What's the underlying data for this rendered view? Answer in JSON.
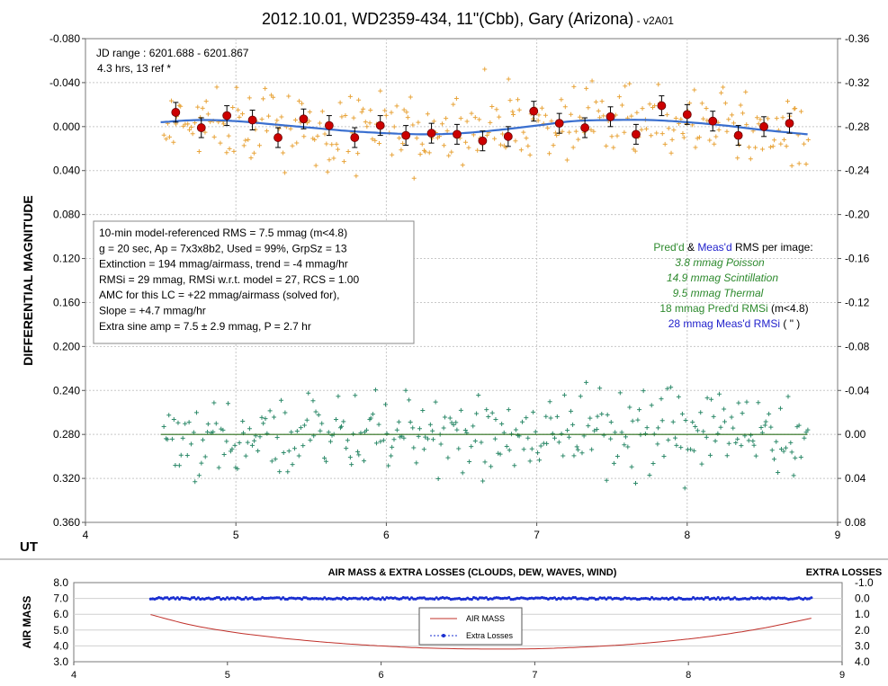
{
  "title": {
    "main": "2012.10.01, WD2359-434, 11\"(Cbb), Gary (Arizona)",
    "suffix": " - v2A01"
  },
  "colors": {
    "target": "#e8a43a",
    "check": "#2e8a6a",
    "avg": "#cc0000",
    "model": "#3a6fcf",
    "baseline": "#2a6e1a",
    "airmass": "#c0302a",
    "losses": "#1a2fd0",
    "legend_green": "#2e8a2e",
    "legend_blue": "#2222cc"
  },
  "top_chart": {
    "ylabel": "DIFFERENTIAL MAGNITUDE",
    "xlabel": "UT",
    "jd_range": "JD range : 6201.688  - 6201.867",
    "hrs_ref": "4.3 hrs, 13 ref *",
    "stats_box": [
      "10-min model-referenced RMS = 7.5 mmag (m<4.8)",
      "g = 20 sec, Ap = 7x3x8b2, Used = 99%, GrpSz = 13",
      "Extinction = 194 mmag/airmass, trend = -4 mmag/hr",
      "RMSi = 29 mmag, RMSi w.r.t. model = 27, RCS = 1.00",
      "AMC for this LC = +22 mmag/airmass (solved for),",
      "Slope = +4.7 mmag/hr",
      "Extra sine amp = 7.5 ± 2.9 mmag, P = 2.7 hr"
    ],
    "rms_legend": {
      "header_a": "Pred'd",
      "header_amp": " & ",
      "header_b": "Meas'd",
      "header_c": " RMS per image:",
      "poisson": "3.8 mmag Poisson",
      "scint": "14.9 mmag Scintillation",
      "thermal": "9.5 mmag Thermal",
      "predd": "18 mmag Pred'd  RMSi",
      "predd_cond": " (m<4.8)",
      "measd": "28 mmag Meas'd RMSi",
      "measd_cond": " (   \"    )"
    },
    "left_ticks": [
      "-0.080",
      "-0.040",
      "0.000",
      "0.040",
      "0.080",
      "0.120",
      "0.160",
      "0.200",
      "0.240",
      "0.280",
      "0.320",
      "0.360"
    ],
    "right_ticks": [
      "-0.36",
      "-0.32",
      "-0.28",
      "-0.24",
      "-0.20",
      "-0.16",
      "-0.12",
      "-0.08",
      "-0.04",
      "0.00",
      "0.04",
      "0.08"
    ],
    "x_ticks": [
      "4",
      "5",
      "6",
      "7",
      "8",
      "9"
    ]
  },
  "bottom_chart": {
    "title": "AIR MASS & EXTRA LOSSES  (CLOUDS,  DEW, WAVES, WIND)",
    "right_title": "EXTRA LOSSES",
    "ylabel": "AIR MASS",
    "left_ticks": [
      "8.0",
      "7.0",
      "6.0",
      "5.0",
      "4.0",
      "3.0"
    ],
    "right_ticks": [
      "-1.0",
      "0.0",
      "1.0",
      "2.0",
      "3.0",
      "4.0"
    ],
    "x_ticks": [
      "4",
      "5",
      "6",
      "7",
      "8",
      "9"
    ],
    "legend_airmass": "AIR MASS",
    "legend_losses": "Extra Losses"
  },
  "chart_data": [
    {
      "type": "scatter",
      "title": "2012.10.01, WD2359-434, 11\"(Cbb), Gary (Arizona) - v2A01",
      "xlabel": "UT",
      "ylabel": "DIFFERENTIAL MAGNITUDE",
      "xlim": [
        4,
        9
      ],
      "ylim": [
        -0.08,
        0.36
      ],
      "y_inverted": true,
      "right_ylim": [
        -0.36,
        0.08
      ],
      "grid": true,
      "series": [
        {
          "kind": "binned_average",
          "x": [
            4.6,
            4.77,
            4.94,
            5.11,
            5.28,
            5.45,
            5.62,
            5.79,
            5.96,
            6.13,
            6.3,
            6.47,
            6.64,
            6.81,
            6.98,
            7.15,
            7.32,
            7.49,
            7.66,
            7.83,
            8.0,
            8.17,
            8.34,
            8.51,
            8.68
          ],
          "y": [
            -0.013,
            0.001,
            -0.01,
            -0.006,
            0.01,
            -0.007,
            -0.001,
            0.01,
            -0.001,
            0.008,
            0.006,
            0.007,
            0.013,
            0.009,
            -0.014,
            -0.003,
            0.001,
            -0.009,
            0.007,
            -0.019,
            -0.011,
            -0.005,
            0.008,
            0.0,
            -0.003
          ],
          "err": 0.009
        },
        {
          "kind": "model",
          "x": [
            4.5,
            4.75,
            5.0,
            5.25,
            5.5,
            5.75,
            6.0,
            6.25,
            6.5,
            6.75,
            7.0,
            7.25,
            7.5,
            7.75,
            8.0,
            8.25,
            8.5,
            8.8
          ],
          "y": [
            -0.004,
            -0.006,
            -0.005,
            -0.002,
            0.001,
            0.004,
            0.006,
            0.007,
            0.006,
            0.003,
            -0.001,
            -0.005,
            -0.006,
            -0.006,
            -0.004,
            -0.001,
            0.003,
            0.007
          ]
        },
        {
          "kind": "check_star_baseline",
          "x": [
            4.5,
            8.8
          ],
          "y": [
            0.28,
            0.28
          ]
        }
      ],
      "annotations": [
        "JD range : 6201.688  - 6201.867",
        "4.3 hrs, 13 ref *"
      ]
    },
    {
      "type": "line",
      "title": "AIR MASS & EXTRA LOSSES  (CLOUDS,  DEW, WAVES, WIND)",
      "xlabel": "",
      "ylabel": "AIR MASS",
      "xlim": [
        4,
        9
      ],
      "ylim": [
        3.0,
        8.0
      ],
      "right_ylim": [
        -1.0,
        4.0
      ],
      "series": [
        {
          "name": "AIR MASS",
          "x": [
            4.5,
            4.75,
            5.0,
            5.25,
            5.5,
            5.75,
            6.0,
            6.25,
            6.5,
            6.75,
            7.0,
            7.25,
            7.5,
            7.75,
            8.0,
            8.25,
            8.5,
            8.8
          ],
          "y": [
            5.98,
            5.35,
            4.92,
            4.6,
            4.35,
            4.15,
            4.0,
            3.88,
            3.82,
            3.8,
            3.82,
            3.9,
            4.02,
            4.2,
            4.44,
            4.75,
            5.15,
            5.75
          ]
        },
        {
          "name": "Extra Losses",
          "x": [
            4.5,
            5.0,
            5.5,
            6.0,
            6.5,
            7.0,
            7.5,
            8.0,
            8.5,
            8.8
          ],
          "y": [
            0.0,
            0.0,
            0.0,
            0.0,
            0.0,
            0.0,
            0.0,
            0.0,
            0.0,
            0.0
          ]
        }
      ]
    }
  ]
}
